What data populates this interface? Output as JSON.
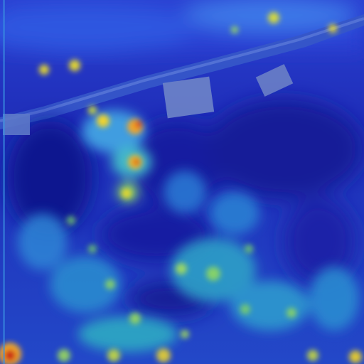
{
  "image": {
    "type": "aerial-photo-with-heatmap-overlay",
    "colormap": [
      "#0a0f8f",
      "#1f35d8",
      "#2f7fe0",
      "#35c9c0",
      "#a6e05a",
      "#f2d22a",
      "#e8461c",
      "#b30f0f"
    ],
    "scene_elements": [
      "road",
      "house",
      "shed",
      "field",
      "trees"
    ]
  }
}
